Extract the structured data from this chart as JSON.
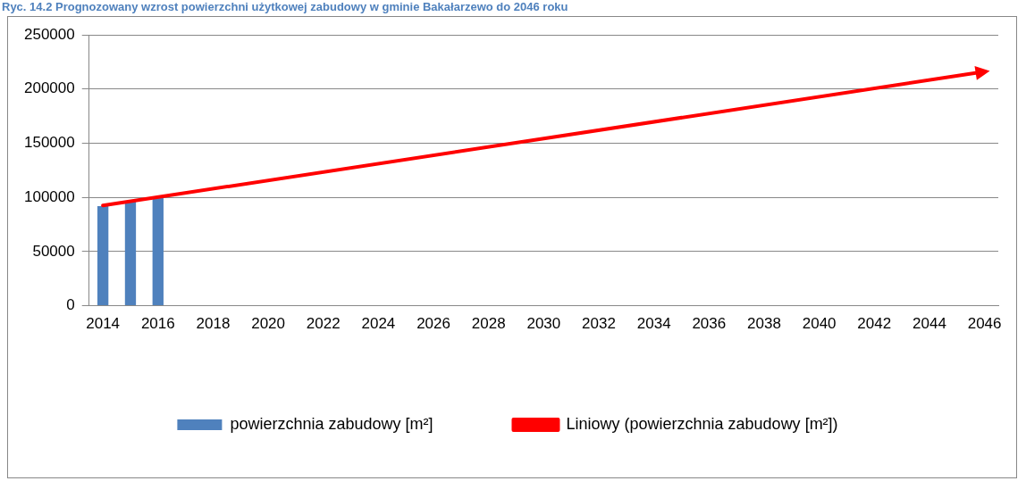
{
  "chart_data": {
    "type": "bar",
    "title": "Ryc. 14.2 Prognozowany wzrost powierzchni użytkowej zabudowy w gminie Bakałarzewo do 2046 roku",
    "categories": [
      "2014",
      null,
      "2016",
      null,
      "2018",
      null,
      "2020",
      null,
      "2022",
      null,
      "2024",
      null,
      "2026",
      null,
      "2028",
      null,
      "2030",
      null,
      "2032",
      null,
      "2034",
      null,
      "2036",
      null,
      "2038",
      null,
      "2040",
      null,
      "2042",
      null,
      "2044",
      null,
      "2046"
    ],
    "series": [
      {
        "name": "powierzchnia zabudowy [m²]",
        "color": "#4f81bd",
        "values": [
          92000,
          96000,
          100000,
          null,
          null,
          null,
          null,
          null,
          null,
          null,
          null,
          null,
          null,
          null,
          null,
          null,
          null,
          null,
          null,
          null,
          null,
          null,
          null,
          null,
          null,
          null,
          null,
          null,
          null,
          null,
          null,
          null,
          null
        ]
      },
      {
        "name": "Liniowy (powierzchnia zabudowy [m²])",
        "type": "line",
        "color": "#ff0000",
        "values": [
          92500,
          null,
          null,
          null,
          null,
          null,
          null,
          null,
          null,
          null,
          null,
          null,
          null,
          null,
          null,
          null,
          null,
          null,
          null,
          null,
          null,
          null,
          null,
          null,
          null,
          null,
          null,
          null,
          null,
          null,
          null,
          null,
          216000
        ]
      }
    ],
    "ylim": [
      0,
      250000
    ],
    "yticks": [
      0,
      50000,
      100000,
      150000,
      200000,
      250000
    ],
    "grid": "y",
    "legend": "bottom"
  }
}
